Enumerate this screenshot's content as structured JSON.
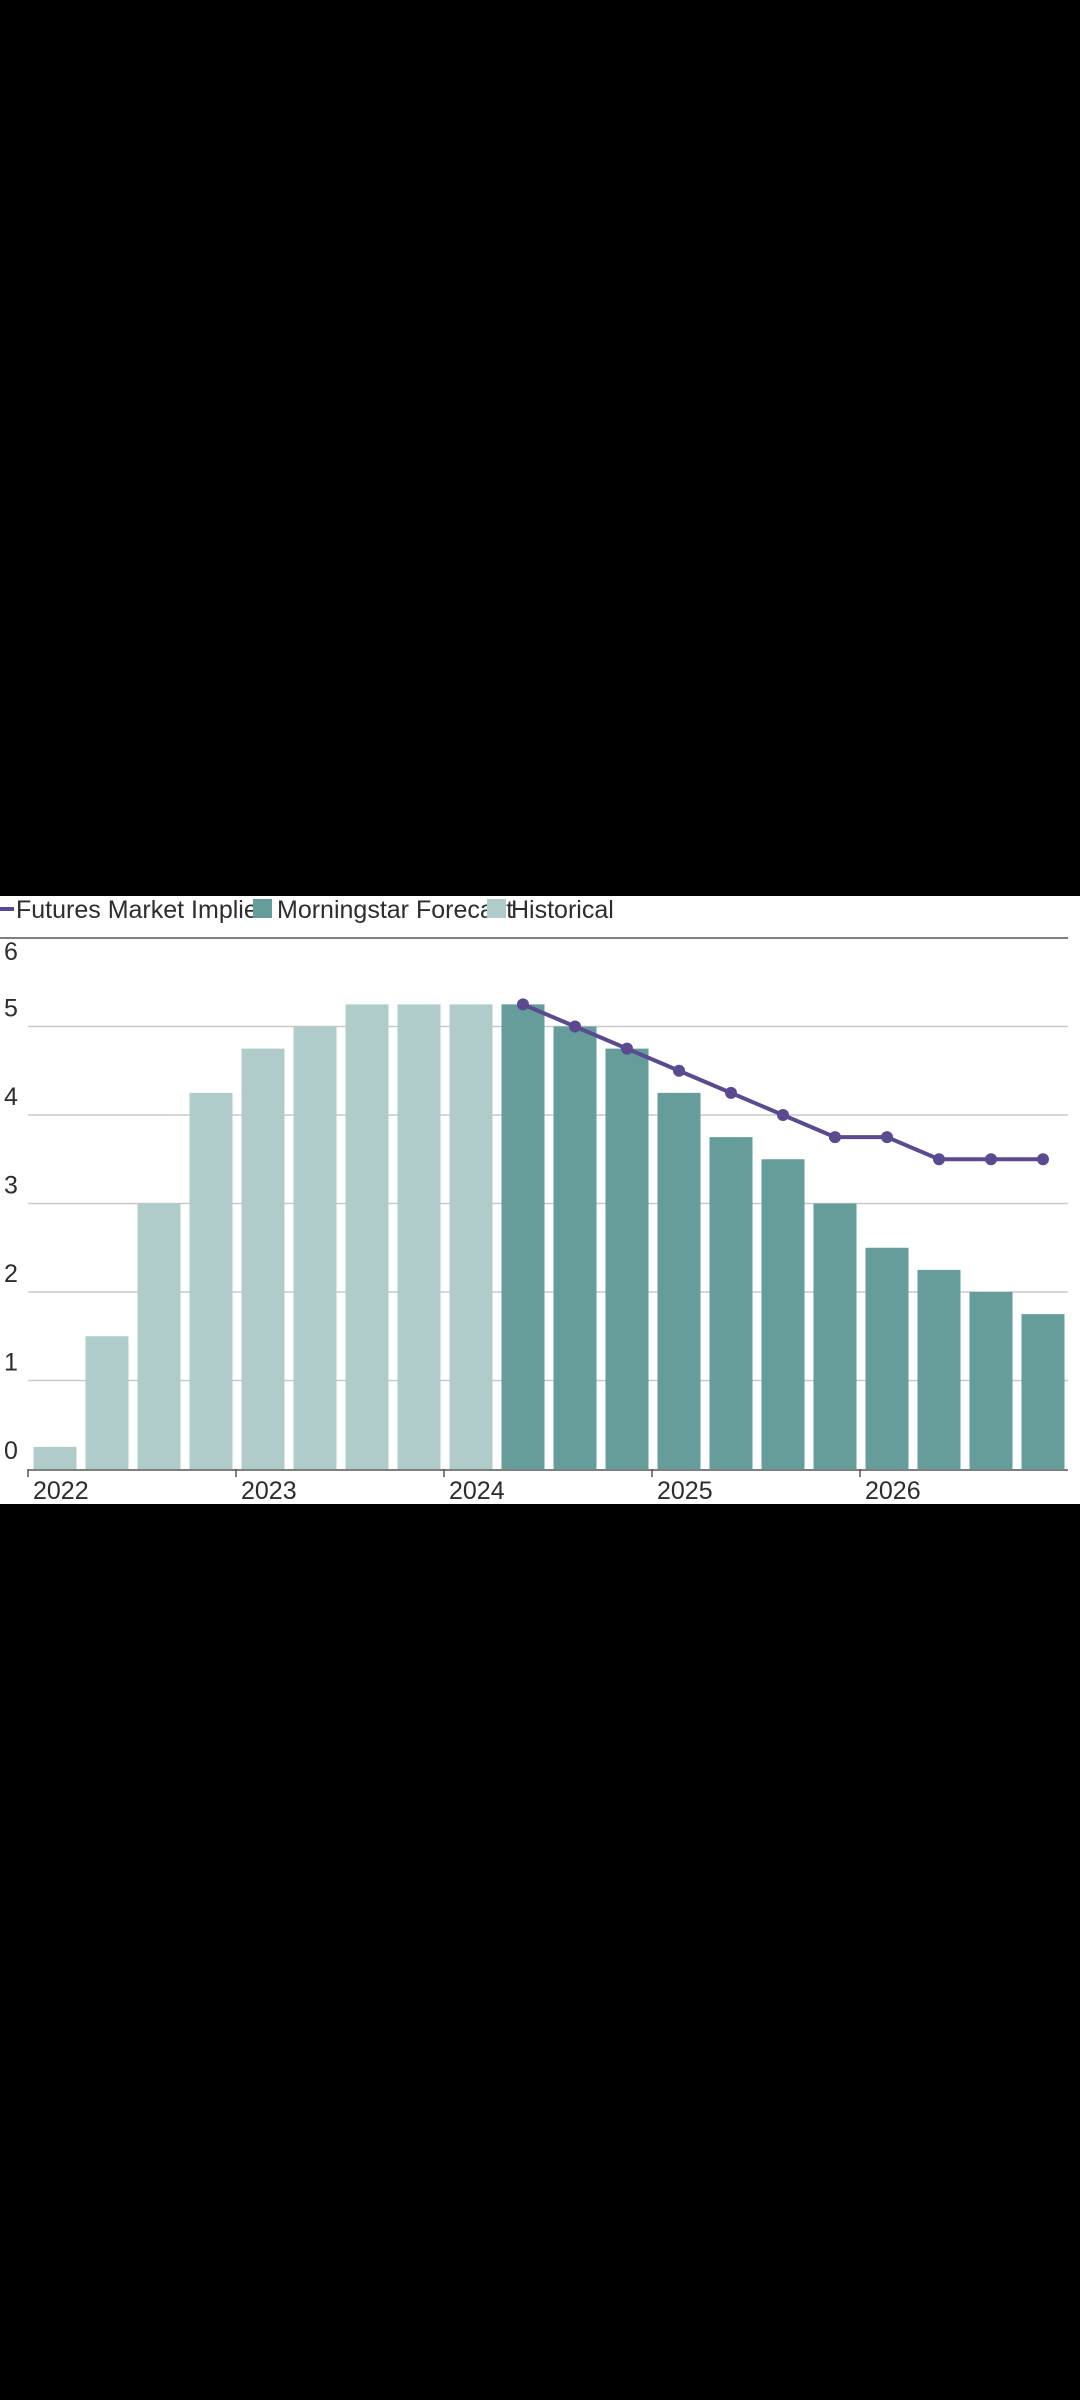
{
  "chart_data": {
    "type": "bar",
    "legend": {
      "placement": "top-left",
      "entries": [
        {
          "label": "Futures Market Implied",
          "kind": "line",
          "color": "#5b4a8f"
        },
        {
          "label": "Morningstar Forecast",
          "kind": "bar",
          "color": "#649d99"
        },
        {
          "label": "Historical",
          "kind": "bar",
          "color": "#afcccb"
        }
      ]
    },
    "ylim": [
      0,
      6
    ],
    "yticks": [
      "0",
      "1",
      "2",
      "3",
      "4",
      "5",
      "6"
    ],
    "xtick_labels": [
      {
        "label": "2022",
        "index": 0
      },
      {
        "label": "2023",
        "index": 4
      },
      {
        "label": "2024",
        "index": 8
      },
      {
        "label": "2025",
        "index": 12
      },
      {
        "label": "2026",
        "index": 16
      }
    ],
    "grid": true,
    "series": [
      {
        "name": "Historical",
        "type": "bar",
        "color": "#afcccb",
        "start_index": 0,
        "values": [
          0.25,
          1.5,
          3.0,
          4.25,
          4.75,
          5.0,
          5.25,
          5.25,
          5.25
        ]
      },
      {
        "name": "Morningstar Forecast",
        "type": "bar",
        "color": "#649d99",
        "start_index": 9,
        "values": [
          5.25,
          5.0,
          4.75,
          4.25,
          3.75,
          3.5,
          3.0,
          2.5,
          2.25,
          2.0,
          1.75
        ]
      },
      {
        "name": "Futures Market Implied",
        "type": "line",
        "color": "#5b4a8f",
        "start_index": 9,
        "values": [
          5.25,
          5.0,
          4.75,
          4.5,
          4.25,
          4.0,
          3.75,
          3.75,
          3.5,
          3.5,
          3.5
        ]
      }
    ]
  }
}
